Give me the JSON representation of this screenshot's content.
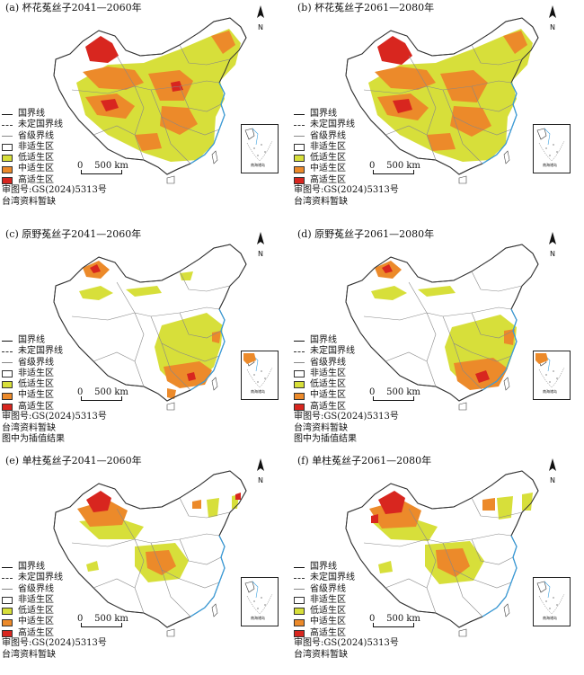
{
  "colors": {
    "unsuitable": "#ffffff",
    "low": "#d7df3a",
    "medium": "#ec8a2a",
    "high": "#d8261f",
    "border": "#555555",
    "coast": "#3aa0e0"
  },
  "legend_labels": {
    "national_border": "国界线",
    "undetermined_border": "未定国界线",
    "provincial_border": "省级界线",
    "unsuitable": "非适生区",
    "low": "低适生区",
    "medium": "中适生区",
    "high": "高适生区"
  },
  "scale_label": "500 km",
  "scale_zero": "0",
  "north_label": "N",
  "inset_label": "南海诸岛",
  "review_number": "审图号:GS(2024)5313号",
  "taiwan_note": "台湾资料暂缺",
  "interp_note": "图中为插值结果",
  "panels": [
    {
      "title": "(a) 杯花菟丝子2041—2060年",
      "notes": [
        "审图号:GS(2024)5313号",
        "台湾资料暂缺"
      ]
    },
    {
      "title": "(b) 杯花菟丝子2061—2080年",
      "notes": [
        "审图号:GS(2024)5313号",
        "台湾资料暂缺"
      ]
    },
    {
      "title": "(c) 原野菟丝子2041—2060年",
      "notes": [
        "审图号:GS(2024)5313号",
        "台湾资料暂缺",
        "图中为插值结果"
      ]
    },
    {
      "title": "(d) 原野菟丝子2061—2080年",
      "notes": [
        "审图号:GS(2024)5313号",
        "台湾资料暂缺",
        "图中为插值结果"
      ]
    },
    {
      "title": "(e) 单柱菟丝子2041—2060年",
      "notes": [
        "审图号:GS(2024)5313号",
        "台湾资料暂缺"
      ]
    },
    {
      "title": "(f) 单柱菟丝子2061—2080年",
      "notes": [
        "审图号:GS(2024)5313号",
        "台湾资料暂缺"
      ]
    }
  ]
}
